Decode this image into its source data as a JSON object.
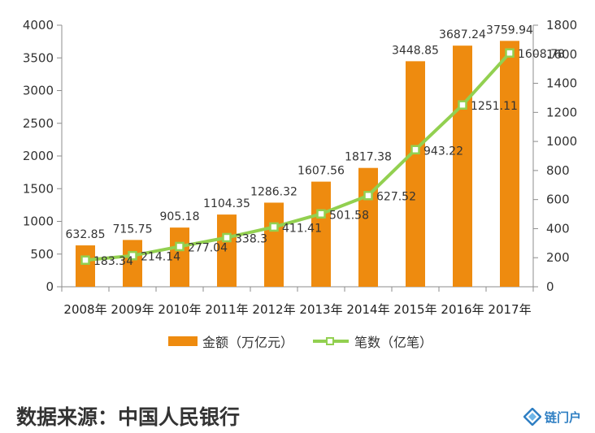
{
  "chart_data": {
    "type": "bar",
    "categories": [
      "2008年",
      "2009年",
      "2010年",
      "2011年",
      "2012年",
      "2013年",
      "2014年",
      "2015年",
      "2016年",
      "2017年"
    ],
    "series": [
      {
        "name": "金额（万亿元）",
        "type": "bar",
        "axis": "left",
        "color": "#ee8b0f",
        "values": [
          632.85,
          715.75,
          905.18,
          1104.35,
          1286.32,
          1607.56,
          1817.38,
          3448.85,
          3687.24,
          3759.94
        ],
        "labels": [
          "632.85",
          "715.75",
          "905.18",
          "1104.35",
          "1286.32",
          "1607.56",
          "1817.38",
          "3448.85",
          "3687.24",
          "3759.94"
        ]
      },
      {
        "name": "笔数（亿笔）",
        "type": "line",
        "axis": "right",
        "color": "#92d050",
        "values": [
          183.34,
          214.14,
          277.04,
          338.3,
          411.41,
          501.58,
          627.52,
          943.22,
          1251.11,
          1608.78
        ],
        "labels": [
          "183.34",
          "214.14",
          "277.04",
          "338.3",
          "411.41",
          "501.58",
          "627.52",
          "943.22",
          "1251.11",
          "1608.78"
        ]
      }
    ],
    "y_left": {
      "ylim": [
        0,
        4000
      ],
      "ticks": [
        "0",
        "500",
        "1000",
        "1500",
        "2000",
        "2500",
        "3000",
        "3500",
        "4000"
      ]
    },
    "y_right": {
      "ylim": [
        0,
        1800
      ],
      "ticks": [
        "0",
        "200",
        "400",
        "600",
        "800",
        "1000",
        "1200",
        "1400",
        "1600",
        "1800"
      ]
    },
    "legend_position": "bottom",
    "grid": false
  },
  "source_text": "数据来源：中国人民银行",
  "logo_text": "链门户"
}
